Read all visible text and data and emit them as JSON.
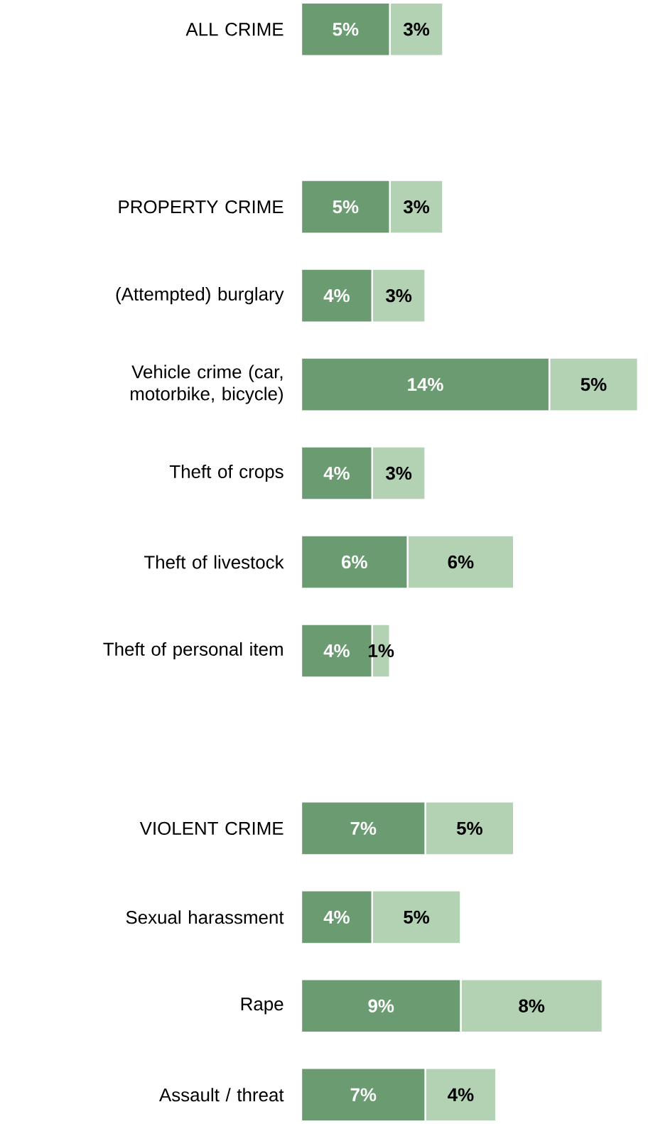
{
  "chart_data": {
    "type": "bar",
    "orientation": "horizontal",
    "stacked": true,
    "categories": [
      "ALL CRIME",
      null,
      "PROPERTY CRIME",
      "(Attempted) burglary",
      "Vehicle crime (car, motorbike, bicycle)",
      "Theft of crops",
      "Theft of livestock",
      "Theft of personal item",
      null,
      "VIOLENT CRIME",
      "Sexual harassment",
      "Rape",
      "Assault / threat"
    ],
    "series": [
      {
        "color": "#6b9b70",
        "values": [
          5,
          null,
          5,
          4,
          14,
          4,
          6,
          4,
          null,
          7,
          4,
          9,
          7
        ],
        "value_labels": [
          "5%",
          null,
          "5%",
          "4%",
          "14%",
          "4%",
          "6%",
          "4%",
          null,
          "7%",
          "4%",
          "9%",
          "7%"
        ]
      },
      {
        "color": "#b3d2b4",
        "values": [
          3,
          null,
          3,
          3,
          5,
          3,
          6,
          1,
          null,
          5,
          5,
          8,
          4
        ],
        "value_labels": [
          "3%",
          null,
          "3%",
          "3%",
          "5%",
          "3%",
          "6%",
          "1%",
          null,
          "5%",
          "5%",
          "8%",
          "4%"
        ]
      }
    ]
  }
}
